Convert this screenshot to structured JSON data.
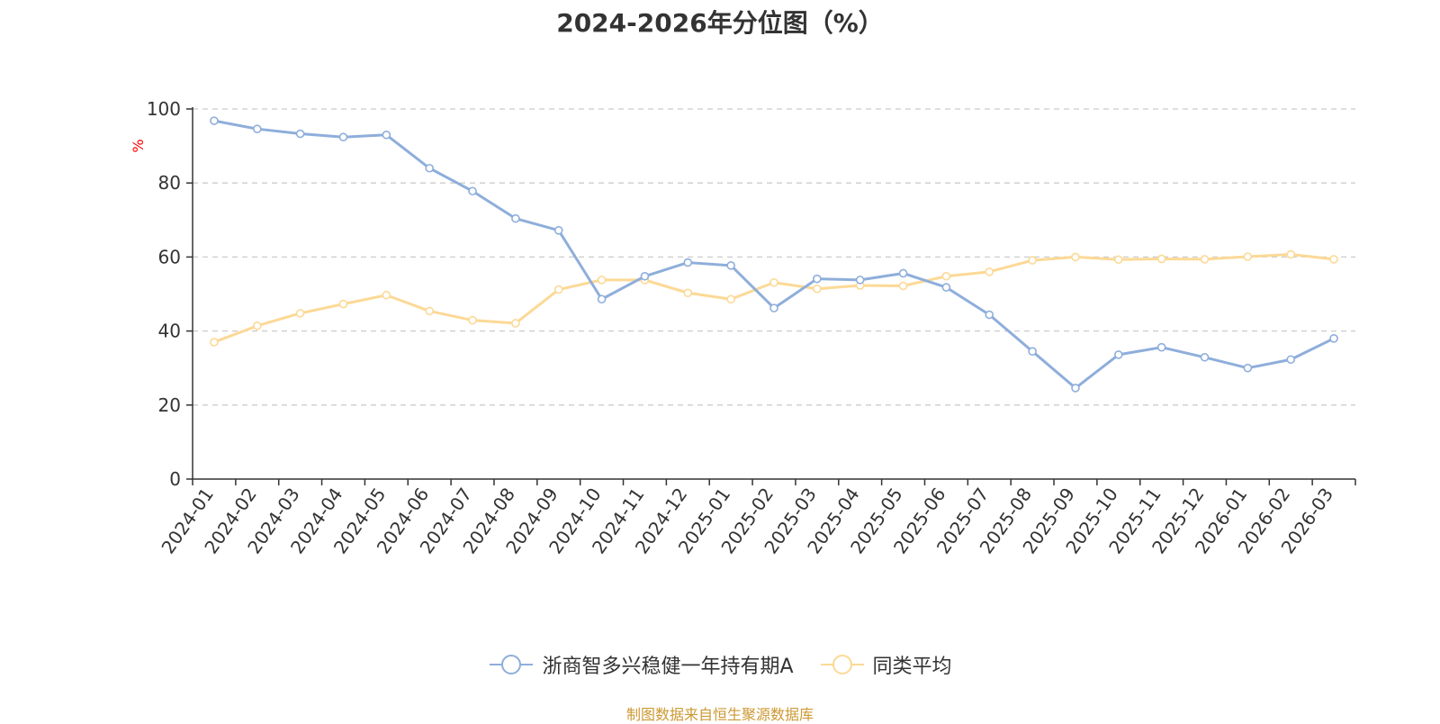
{
  "chart_data": {
    "type": "line",
    "title": "2024-2026年分位图（%）",
    "ylabel": "%",
    "xlabel": "",
    "ylim": [
      0,
      100
    ],
    "yticks": [
      0,
      20,
      40,
      60,
      80,
      100
    ],
    "grid": true,
    "legend_position": "bottom",
    "categories": [
      "2024-01",
      "2024-02",
      "2024-03",
      "2024-04",
      "2024-05",
      "2024-06",
      "2024-07",
      "2024-08",
      "2024-09",
      "2024-10",
      "2024-11",
      "2024-12",
      "2025-01",
      "2025-02",
      "2025-03",
      "2025-04",
      "2025-05",
      "2025-06",
      "2025-07",
      "2025-08",
      "2025-09",
      "2025-10",
      "2025-11",
      "2025-12",
      "2026-01",
      "2026-02",
      "2026-03"
    ],
    "series": [
      {
        "name": "浙商智多兴稳健一年持有期A",
        "color": "#8eaedb",
        "values": [
          96.8,
          94.6,
          93.3,
          92.4,
          93.0,
          84.0,
          77.8,
          70.4,
          67.2,
          48.6,
          54.8,
          58.5,
          57.7,
          46.2,
          54.1,
          53.8,
          55.6,
          51.8,
          44.4,
          34.5,
          24.6,
          33.6,
          35.6,
          32.9,
          30.0,
          32.3,
          38.0
        ]
      },
      {
        "name": "同类平均",
        "color": "#fcd996",
        "values": [
          37.0,
          41.4,
          44.8,
          47.3,
          49.7,
          45.4,
          42.9,
          42.1,
          51.2,
          53.8,
          53.8,
          50.3,
          48.6,
          53.1,
          51.4,
          52.3,
          52.2,
          54.8,
          56.0,
          59.1,
          60.0,
          59.3,
          59.5,
          59.4,
          60.1,
          60.7,
          59.4
        ]
      }
    ]
  },
  "footer": {
    "source_text": "制图数据来自恒生聚源数据库",
    "source_color": "#cc9933"
  },
  "colors": {
    "axis": "#333333",
    "grid": "#cccccc",
    "ylabel": "#ff0000"
  }
}
